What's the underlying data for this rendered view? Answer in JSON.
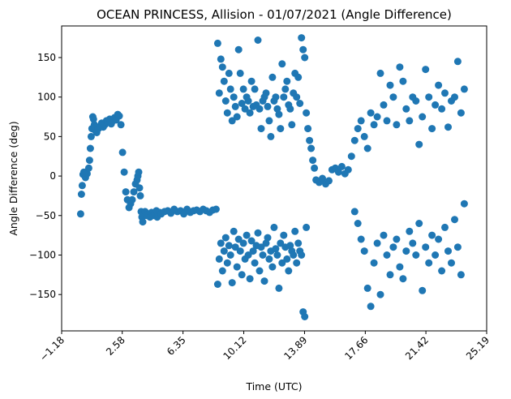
{
  "chart_data": {
    "type": "scatter",
    "title": "OCEAN PRINCESS, Allision - 01/07/2021 (Angle Difference)",
    "xlabel": "Time (UTC)",
    "ylabel": "Angle Difference (deg)",
    "xlim": [
      -1.18,
      25.19
    ],
    "ylim": [
      -196,
      190
    ],
    "x_ticks": [
      -1.18,
      2.58,
      6.35,
      10.12,
      13.89,
      17.66,
      21.42,
      25.19
    ],
    "x_tick_labels": [
      "−1.18",
      "2.58",
      "6.35",
      "10.12",
      "13.89",
      "17.66",
      "21.42",
      "25.19"
    ],
    "y_ticks": [
      -150,
      -100,
      -50,
      0,
      50,
      100,
      150
    ],
    "y_tick_labels": [
      "−150",
      "−100",
      "−50",
      "0",
      "50",
      "100",
      "150"
    ],
    "x_tick_rotation": 45,
    "grid": false,
    "marker_color": "#1f77b4",
    "series": [
      {
        "x": [
          0.0,
          0.05,
          0.1,
          0.15,
          0.2,
          0.3,
          0.4,
          0.5,
          0.55,
          0.6,
          0.65,
          0.7,
          0.75,
          0.8,
          0.85,
          0.9,
          0.95,
          1.0,
          1.1,
          1.2,
          1.3,
          1.4,
          1.5,
          1.6,
          1.7,
          1.8,
          1.9,
          2.0,
          2.1,
          2.2,
          2.3,
          2.4,
          2.5,
          2.6,
          2.7,
          2.8,
          2.9,
          3.0,
          3.1,
          3.2,
          3.3,
          3.4,
          3.5,
          3.55,
          3.6,
          3.65,
          3.7,
          3.75,
          3.8,
          3.85,
          3.9,
          4.0,
          4.1,
          4.2,
          4.3,
          4.4,
          4.5,
          4.6,
          4.7,
          4.75,
          4.8,
          4.9,
          5.0,
          5.2,
          5.4,
          5.6,
          5.8,
          6.0,
          6.2,
          6.4,
          6.6,
          6.8,
          7.0,
          7.2,
          7.4,
          7.6,
          7.8,
          8.0,
          8.2,
          8.4
        ],
        "y": [
          -48,
          -23,
          -12,
          2,
          5,
          -2,
          3,
          10,
          20,
          35,
          50,
          60,
          75,
          72,
          65,
          58,
          62,
          55,
          60,
          63,
          67,
          62,
          65,
          70,
          68,
          72,
          66,
          70,
          74,
          71,
          78,
          76,
          65,
          30,
          5,
          -20,
          -30,
          -40,
          -35,
          -30,
          -20,
          -10,
          -5,
          0,
          5,
          -15,
          -25,
          -45,
          -52,
          -58,
          -48,
          -45,
          -50,
          -48,
          -52,
          -46,
          -50,
          -47,
          -44,
          -52,
          -49,
          -46,
          -48,
          -45,
          -44,
          -47,
          -42,
          -45,
          -44,
          -48,
          -42,
          -46,
          -44,
          -43,
          -45,
          -42,
          -44,
          -46,
          -43,
          -42
        ]
      },
      {
        "x": [
          8.5,
          8.6,
          8.7,
          8.8,
          8.9,
          9.0,
          9.1,
          9.2,
          9.3,
          9.4,
          9.5,
          9.6,
          9.7,
          9.8,
          9.9,
          10.0,
          10.1,
          10.2,
          10.3,
          10.4,
          10.5,
          10.6,
          10.7,
          10.8,
          10.9,
          11.0,
          11.1,
          11.2,
          11.3,
          11.4,
          11.5,
          11.6,
          11.7,
          11.8,
          11.9,
          12.0,
          12.1,
          12.2,
          12.3,
          12.4,
          12.5,
          12.6,
          12.7,
          12.8,
          12.9,
          13.0,
          13.1,
          13.2,
          13.3,
          13.4,
          13.5,
          13.6,
          13.7,
          13.8,
          13.9,
          14.0,
          14.1,
          14.2,
          14.3,
          14.4,
          14.5
        ],
        "y": [
          168,
          105,
          148,
          138,
          120,
          95,
          80,
          130,
          110,
          70,
          100,
          88,
          75,
          160,
          130,
          92,
          110,
          85,
          100,
          95,
          80,
          120,
          88,
          110,
          90,
          172,
          85,
          60,
          95,
          100,
          105,
          88,
          70,
          50,
          125,
          95,
          100,
          85,
          78,
          60,
          142,
          100,
          110,
          120,
          90,
          85,
          65,
          105,
          130,
          100,
          125,
          92,
          175,
          160,
          150,
          80,
          60,
          45,
          35,
          20,
          10
        ]
      },
      {
        "x": [
          8.5,
          8.6,
          8.7,
          8.8,
          8.9,
          9.0,
          9.1,
          9.2,
          9.3,
          9.4,
          9.5,
          9.6,
          9.7,
          9.8,
          9.9,
          10.0,
          10.1,
          10.2,
          10.3,
          10.4,
          10.5,
          10.6,
          10.7,
          10.8,
          10.9,
          11.0,
          11.1,
          11.2,
          11.3,
          11.4,
          11.5,
          11.6,
          11.7,
          11.8,
          11.9,
          12.0,
          12.1,
          12.2,
          12.3,
          12.4,
          12.5,
          12.6,
          12.7,
          12.8,
          12.9,
          13.0,
          13.1,
          13.2,
          13.3,
          13.4,
          13.5,
          13.6,
          13.7,
          13.8,
          13.9,
          14.0
        ],
        "y": [
          -137,
          -105,
          -85,
          -120,
          -95,
          -78,
          -110,
          -88,
          -100,
          -135,
          -70,
          -90,
          -115,
          -80,
          -95,
          -125,
          -85,
          -105,
          -75,
          -100,
          -130,
          -82,
          -95,
          -110,
          -88,
          -72,
          -120,
          -90,
          -100,
          -133,
          -85,
          -78,
          -105,
          -95,
          -115,
          -65,
          -92,
          -100,
          -142,
          -85,
          -110,
          -75,
          -90,
          -105,
          -120,
          -88,
          -95,
          -100,
          -70,
          -110,
          -85,
          -95,
          -100,
          -172,
          -178,
          -65
        ]
      },
      {
        "x": [
          14.6,
          14.8,
          15.0,
          15.2,
          15.4,
          15.6,
          15.8,
          16.0,
          16.2,
          16.4,
          16.6,
          16.8,
          17.0,
          17.2,
          17.4,
          17.6,
          17.8,
          18.0,
          18.2,
          18.4,
          18.6,
          18.8,
          19.0,
          19.2,
          19.4,
          19.6,
          19.8,
          20.0,
          20.2,
          20.4,
          20.6,
          20.8,
          21.0,
          21.2,
          21.4,
          21.6,
          21.8,
          22.0,
          22.2,
          22.4,
          22.6,
          22.8,
          23.0,
          23.2,
          23.4,
          23.6,
          23.8
        ],
        "y": [
          -5,
          -8,
          -3,
          -10,
          -6,
          8,
          10,
          5,
          12,
          3,
          8,
          25,
          45,
          60,
          70,
          50,
          35,
          80,
          65,
          75,
          130,
          90,
          70,
          115,
          100,
          65,
          138,
          120,
          85,
          70,
          100,
          95,
          40,
          75,
          135,
          100,
          60,
          90,
          115,
          85,
          105,
          62,
          95,
          100,
          145,
          80,
          110
        ]
      },
      {
        "x": [
          17.0,
          17.2,
          17.4,
          17.6,
          17.8,
          18.0,
          18.2,
          18.4,
          18.6,
          18.8,
          19.0,
          19.2,
          19.4,
          19.6,
          19.8,
          20.0,
          20.2,
          20.4,
          20.6,
          20.8,
          21.0,
          21.2,
          21.4,
          21.6,
          21.8,
          22.0,
          22.2,
          22.4,
          22.6,
          22.8,
          23.0,
          23.2,
          23.4,
          23.6,
          23.8
        ],
        "y": [
          -45,
          -60,
          -80,
          -95,
          -142,
          -165,
          -110,
          -85,
          -150,
          -75,
          -100,
          -125,
          -90,
          -80,
          -115,
          -130,
          -95,
          -70,
          -85,
          -100,
          -60,
          -145,
          -90,
          -110,
          -75,
          -100,
          -80,
          -120,
          -65,
          -95,
          -110,
          -55,
          -90,
          -125,
          -35
        ]
      }
    ]
  }
}
